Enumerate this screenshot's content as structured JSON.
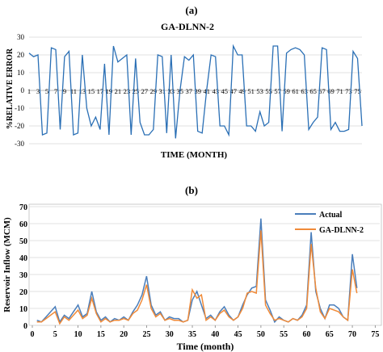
{
  "chart_data": [
    {
      "panel_label": "(a)",
      "type": "line",
      "title": "GA-DLNN-2",
      "xlabel": "TIME (MONTH)",
      "ylabel": "%RELATIVE ERROR",
      "ylim": [
        -30,
        30
      ],
      "yticks": [
        -30,
        -20,
        -10,
        0,
        10,
        20,
        30
      ],
      "xtick_labels": [
        "1",
        "3",
        "5",
        "7",
        "9",
        "11",
        "13",
        "15",
        "17",
        "19",
        "21",
        "23",
        "25",
        "27",
        "29",
        "31",
        "33",
        "35",
        "37",
        "39",
        "41",
        "43",
        "45",
        "47",
        "49",
        "51",
        "53",
        "55",
        "57",
        "59",
        "61",
        "63",
        "65",
        "67",
        "69",
        "71",
        "73",
        "75"
      ],
      "grid": "horizontal",
      "x": [
        1,
        2,
        3,
        4,
        5,
        6,
        7,
        8,
        9,
        10,
        11,
        12,
        13,
        14,
        15,
        16,
        17,
        18,
        19,
        20,
        21,
        22,
        23,
        24,
        25,
        26,
        27,
        28,
        29,
        30,
        31,
        32,
        33,
        34,
        35,
        36,
        37,
        38,
        39,
        40,
        41,
        42,
        43,
        44,
        45,
        46,
        47,
        48,
        49,
        50,
        51,
        52,
        53,
        54,
        55,
        56,
        57,
        58,
        59,
        60,
        61,
        62,
        63,
        64,
        65,
        66,
        67,
        68,
        69,
        70,
        71,
        72,
        73,
        74,
        75,
        76
      ],
      "series": [
        {
          "color": "#2a6fb5",
          "values": [
            21,
            19,
            20,
            -25,
            -24,
            24,
            23,
            -22,
            19,
            22,
            -25,
            -24,
            20,
            -10,
            -20,
            -15,
            -22,
            15,
            -25,
            25,
            16,
            18,
            20,
            -25,
            18,
            -18,
            -25,
            -25,
            -22,
            20,
            19,
            -24,
            20,
            -27,
            0,
            19,
            17,
            20,
            -23,
            -24,
            0,
            20,
            19,
            -20,
            -20,
            -25,
            25,
            20,
            20,
            -20,
            -20,
            -23,
            -12,
            -20,
            -18,
            25,
            25,
            -23,
            21,
            23,
            24,
            23,
            20,
            -22,
            -18,
            -15,
            24,
            23,
            -22,
            -18,
            -23,
            -23,
            -22,
            22,
            18,
            -20
          ]
        }
      ]
    },
    {
      "panel_label": "(b)",
      "type": "line",
      "xlabel": "Time (month)",
      "ylabel": "Reservoir Inflow (MCM)",
      "ylim": [
        0,
        70
      ],
      "xlim": [
        0,
        76
      ],
      "yticks": [
        0,
        10,
        20,
        30,
        40,
        50,
        60,
        70
      ],
      "xticks": [
        0,
        5,
        10,
        15,
        20,
        25,
        30,
        35,
        40,
        45,
        50,
        55,
        60,
        65,
        70,
        75
      ],
      "grid": "horizontal",
      "legend_position": "top-right",
      "series": [
        {
          "name": "Actual",
          "color": "#4a7ebb",
          "values": [
            3,
            2,
            5,
            8,
            11,
            2,
            6,
            4,
            8,
            12,
            5,
            7,
            20,
            8,
            3,
            5,
            2,
            4,
            3,
            5,
            3,
            8,
            12,
            18,
            29,
            12,
            6,
            8,
            3,
            5,
            4,
            4,
            2,
            3,
            15,
            20,
            12,
            4,
            6,
            3,
            8,
            11,
            6,
            3,
            5,
            12,
            18,
            22,
            23,
            63,
            15,
            9,
            2,
            5,
            3,
            2,
            4,
            3,
            6,
            12,
            55,
            20,
            10,
            4,
            12,
            12,
            10,
            5,
            3,
            42,
            22
          ]
        },
        {
          "name": "GA-DLNN-2",
          "color": "#f08a38",
          "values": [
            2,
            2,
            4,
            6,
            8,
            1,
            5,
            3,
            6,
            9,
            4,
            6,
            16,
            7,
            2,
            4,
            2,
            3,
            3,
            4,
            3,
            7,
            9,
            15,
            24,
            10,
            5,
            7,
            3,
            4,
            3,
            3,
            2,
            3,
            21,
            16,
            18,
            3,
            5,
            3,
            7,
            9,
            5,
            3,
            5,
            10,
            19,
            20,
            19,
            56,
            12,
            7,
            3,
            4,
            3,
            2,
            4,
            3,
            5,
            10,
            48,
            22,
            8,
            4,
            10,
            9,
            8,
            5,
            3,
            33,
            19
          ]
        }
      ]
    }
  ]
}
